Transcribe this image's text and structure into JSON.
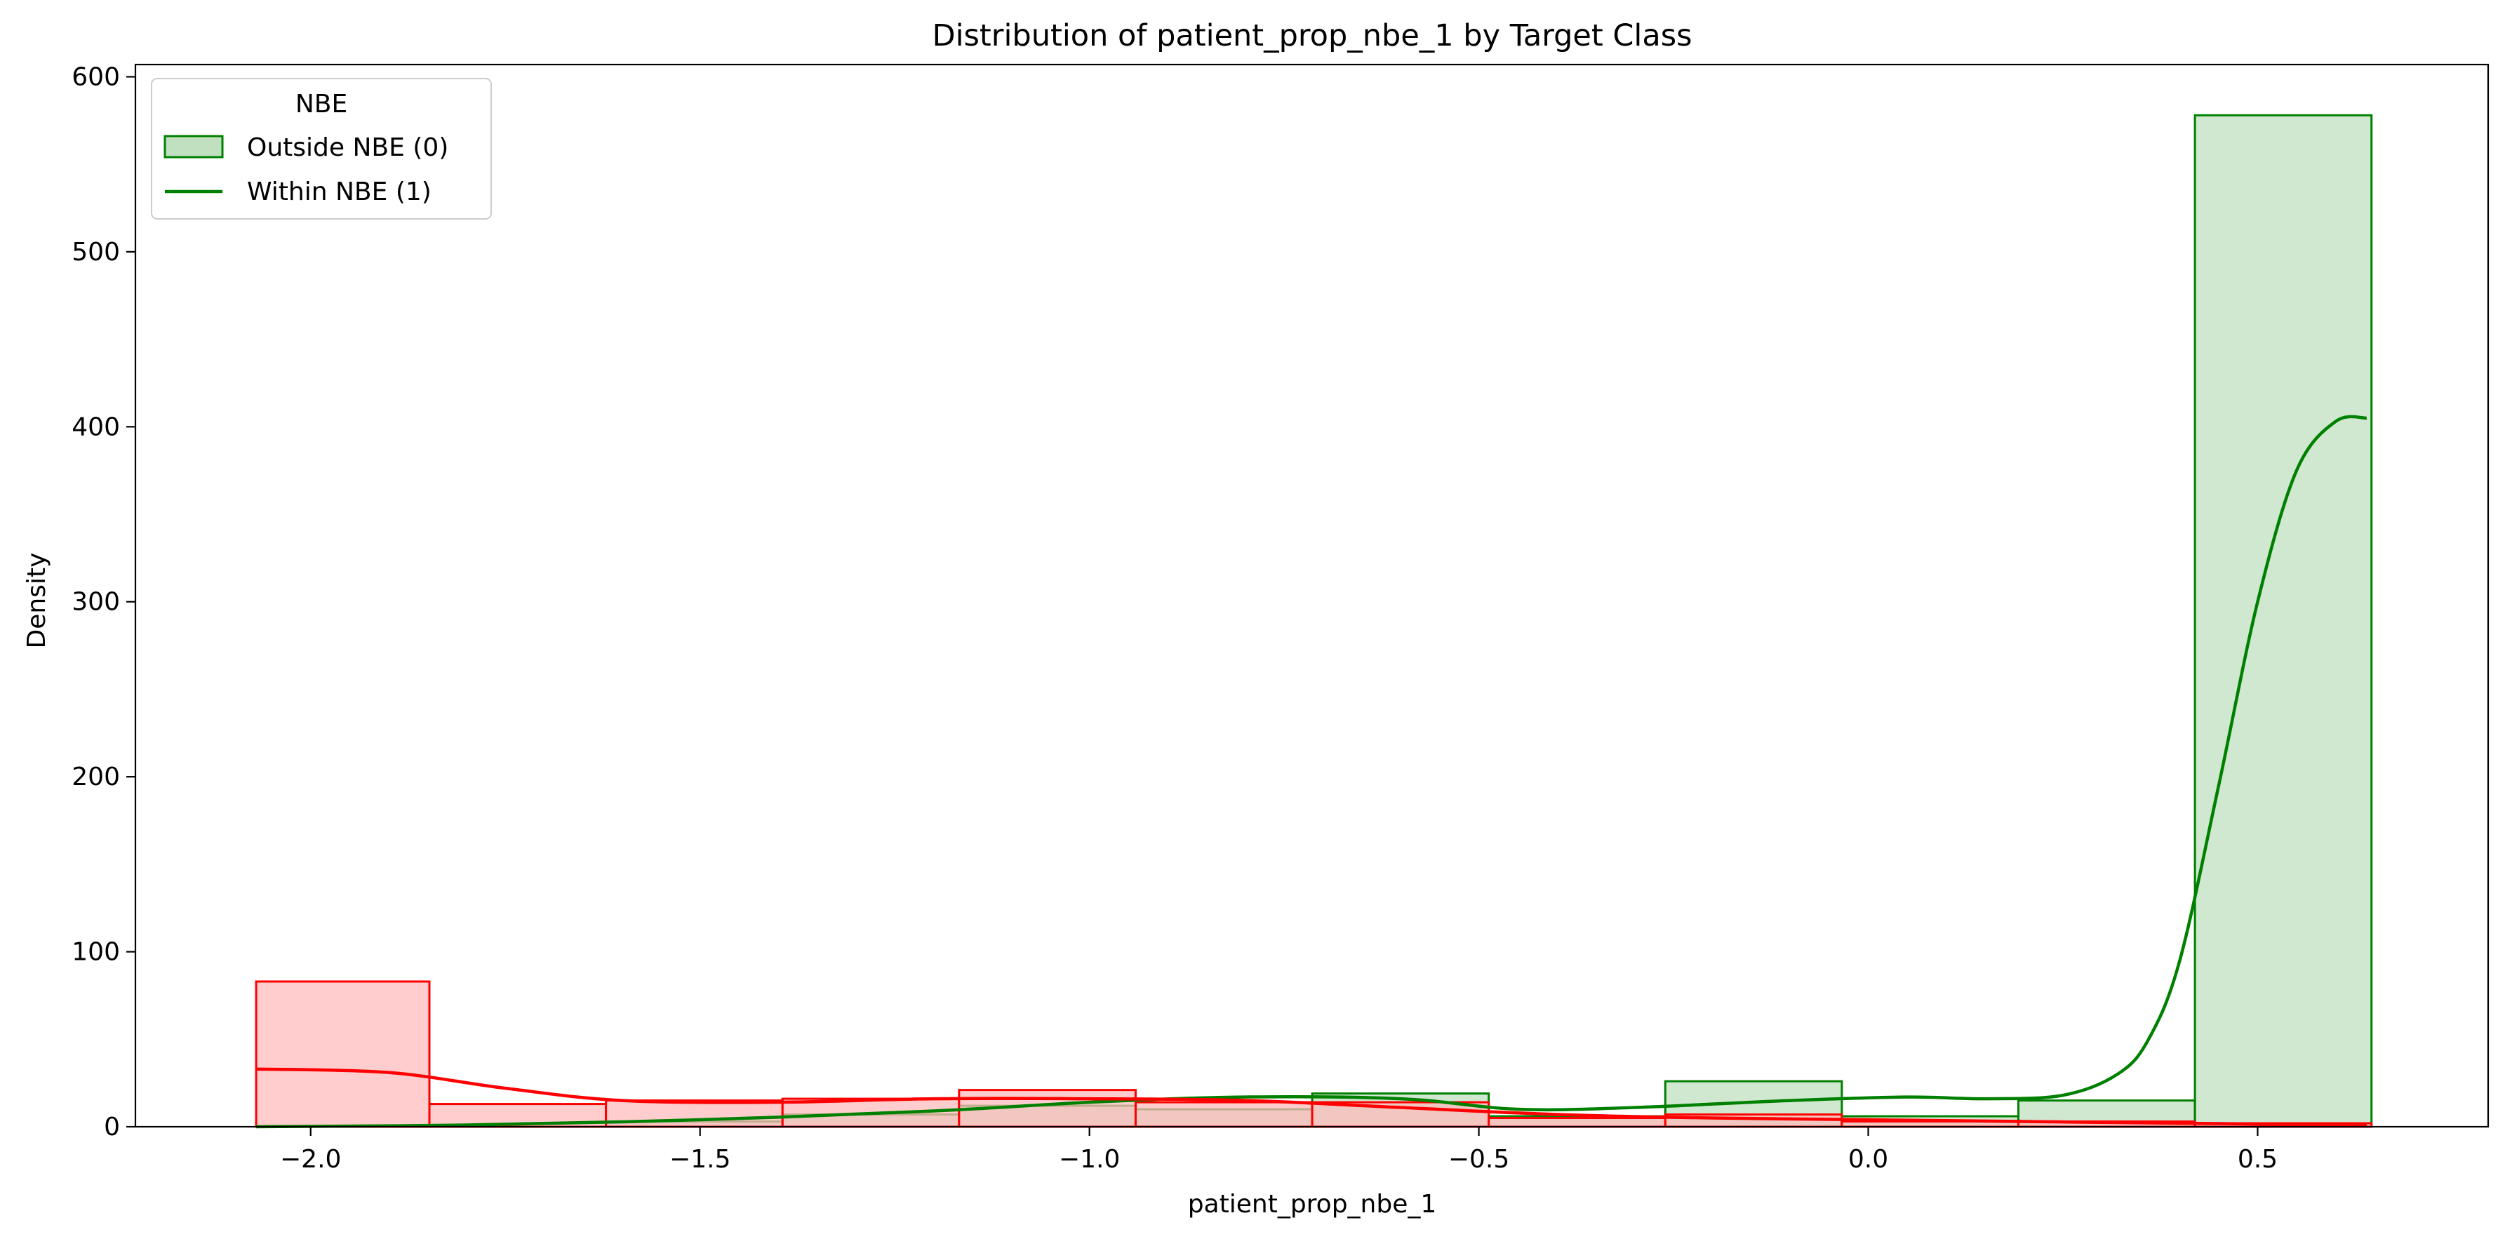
{
  "chart_data": {
    "type": "histogram",
    "title": "Distribution of patient_prop_nbe_1 by Target Class",
    "xlabel": "patient_prop_nbe_1",
    "ylabel": "Density",
    "xlim": [
      -2.225,
      0.796
    ],
    "ylim": [
      0,
      607
    ],
    "xticks": [
      {
        "value": -2.0,
        "label": "−2.0"
      },
      {
        "value": -1.5,
        "label": "−1.5"
      },
      {
        "value": -1.0,
        "label": "−1.0"
      },
      {
        "value": -0.5,
        "label": "−0.5"
      },
      {
        "value": 0.0,
        "label": "0.0"
      },
      {
        "value": 0.5,
        "label": "0.5"
      }
    ],
    "yticks": [
      {
        "value": 0,
        "label": "0"
      },
      {
        "value": 100,
        "label": "100"
      },
      {
        "value": 200,
        "label": "200"
      },
      {
        "value": 300,
        "label": "300"
      },
      {
        "value": 400,
        "label": "400"
      },
      {
        "value": 500,
        "label": "500"
      },
      {
        "value": 600,
        "label": "600"
      }
    ],
    "bin_edges": [
      -2.07,
      -1.8475,
      -1.6208,
      -1.3941,
      -1.1674,
      -0.9407,
      -0.714,
      -0.4873,
      -0.2606,
      -0.0339,
      0.1928,
      0.4195,
      0.6462
    ],
    "legend": {
      "title": "NBE",
      "position": "upper-left",
      "entries": [
        {
          "label": "Outside NBE (0)",
          "marker": "patch"
        },
        {
          "label": "Within NBE (1)",
          "marker": "line"
        }
      ]
    },
    "series": [
      {
        "name": "Class 0 (green)",
        "color": "#008000",
        "fill": "#c0e0c0",
        "values": [
          0,
          0,
          3,
          7,
          12,
          10,
          19,
          6,
          26,
          6,
          15,
          578
        ],
        "kde_x": [
          -2.07,
          -1.8,
          -1.5,
          -1.2,
          -1.0,
          -0.8,
          -0.6,
          -0.45,
          -0.3,
          -0.1,
          0.05,
          0.15,
          0.25,
          0.32,
          0.36,
          0.4,
          0.45,
          0.5,
          0.55,
          0.6,
          0.64
        ],
        "kde_y": [
          0,
          1,
          4,
          9,
          14,
          17,
          16,
          10,
          11,
          15,
          17,
          16,
          18,
          30,
          50,
          95,
          195,
          300,
          375,
          403,
          405
        ]
      },
      {
        "name": "Class 1 (red)",
        "color": "#ff0000",
        "fill": "#ffbcbc",
        "values": [
          83,
          13,
          15,
          16,
          21,
          14,
          14,
          5,
          7,
          3,
          3,
          2
        ],
        "kde_x": [
          -2.07,
          -1.9,
          -1.75,
          -1.6,
          -1.4,
          -1.2,
          -1.0,
          -0.8,
          -0.6,
          -0.4,
          -0.2,
          0.0,
          0.2,
          0.4,
          0.64
        ],
        "kde_y": [
          33,
          31,
          22,
          15,
          14,
          16,
          16,
          15,
          11,
          7,
          5,
          4,
          3,
          2,
          1
        ]
      }
    ]
  }
}
